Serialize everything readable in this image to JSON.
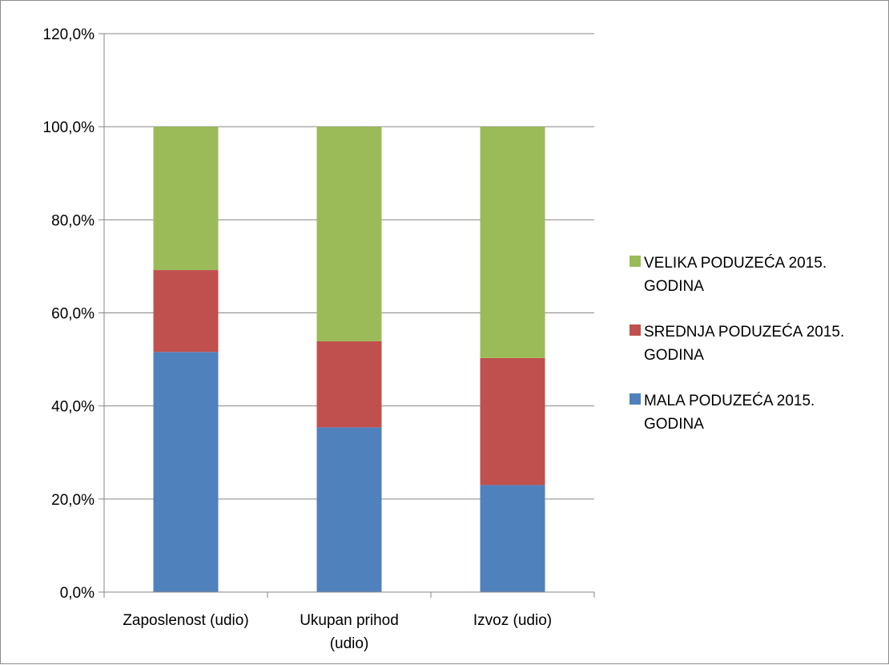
{
  "chart_data": {
    "type": "bar",
    "stacked": true,
    "categories": [
      [
        "Zaposlenost (udio)"
      ],
      [
        "Ukupan prihod",
        "(udio)"
      ],
      [
        "Izvoz (udio)"
      ]
    ],
    "series": [
      {
        "name": "MALA PODUZEĆA 2015. GODINA",
        "label_lines": [
          "MALA PODUZEĆA 2015.",
          "GODINA"
        ],
        "color": "#4f81bd",
        "values": [
          51.6,
          35.4,
          23.0
        ]
      },
      {
        "name": "SREDNJA PODUZEĆA 2015. GODINA",
        "label_lines": [
          "SREDNJA PODUZEĆA 2015.",
          "GODINA"
        ],
        "color": "#c0504d",
        "values": [
          17.6,
          18.5,
          27.3
        ]
      },
      {
        "name": "VELIKA PODUZEĆA 2015. GODINA",
        "label_lines": [
          "VELIKA PODUZEĆA 2015.",
          "GODINA"
        ],
        "color": "#9bbb59",
        "values": [
          30.8,
          46.1,
          49.7
        ]
      }
    ],
    "ylim": [
      0,
      120
    ],
    "yticks": [
      "0,0%",
      "20,0%",
      "40,0%",
      "60,0%",
      "80,0%",
      "100,0%",
      "120,0%"
    ],
    "grid": true,
    "legend_position": "right"
  }
}
